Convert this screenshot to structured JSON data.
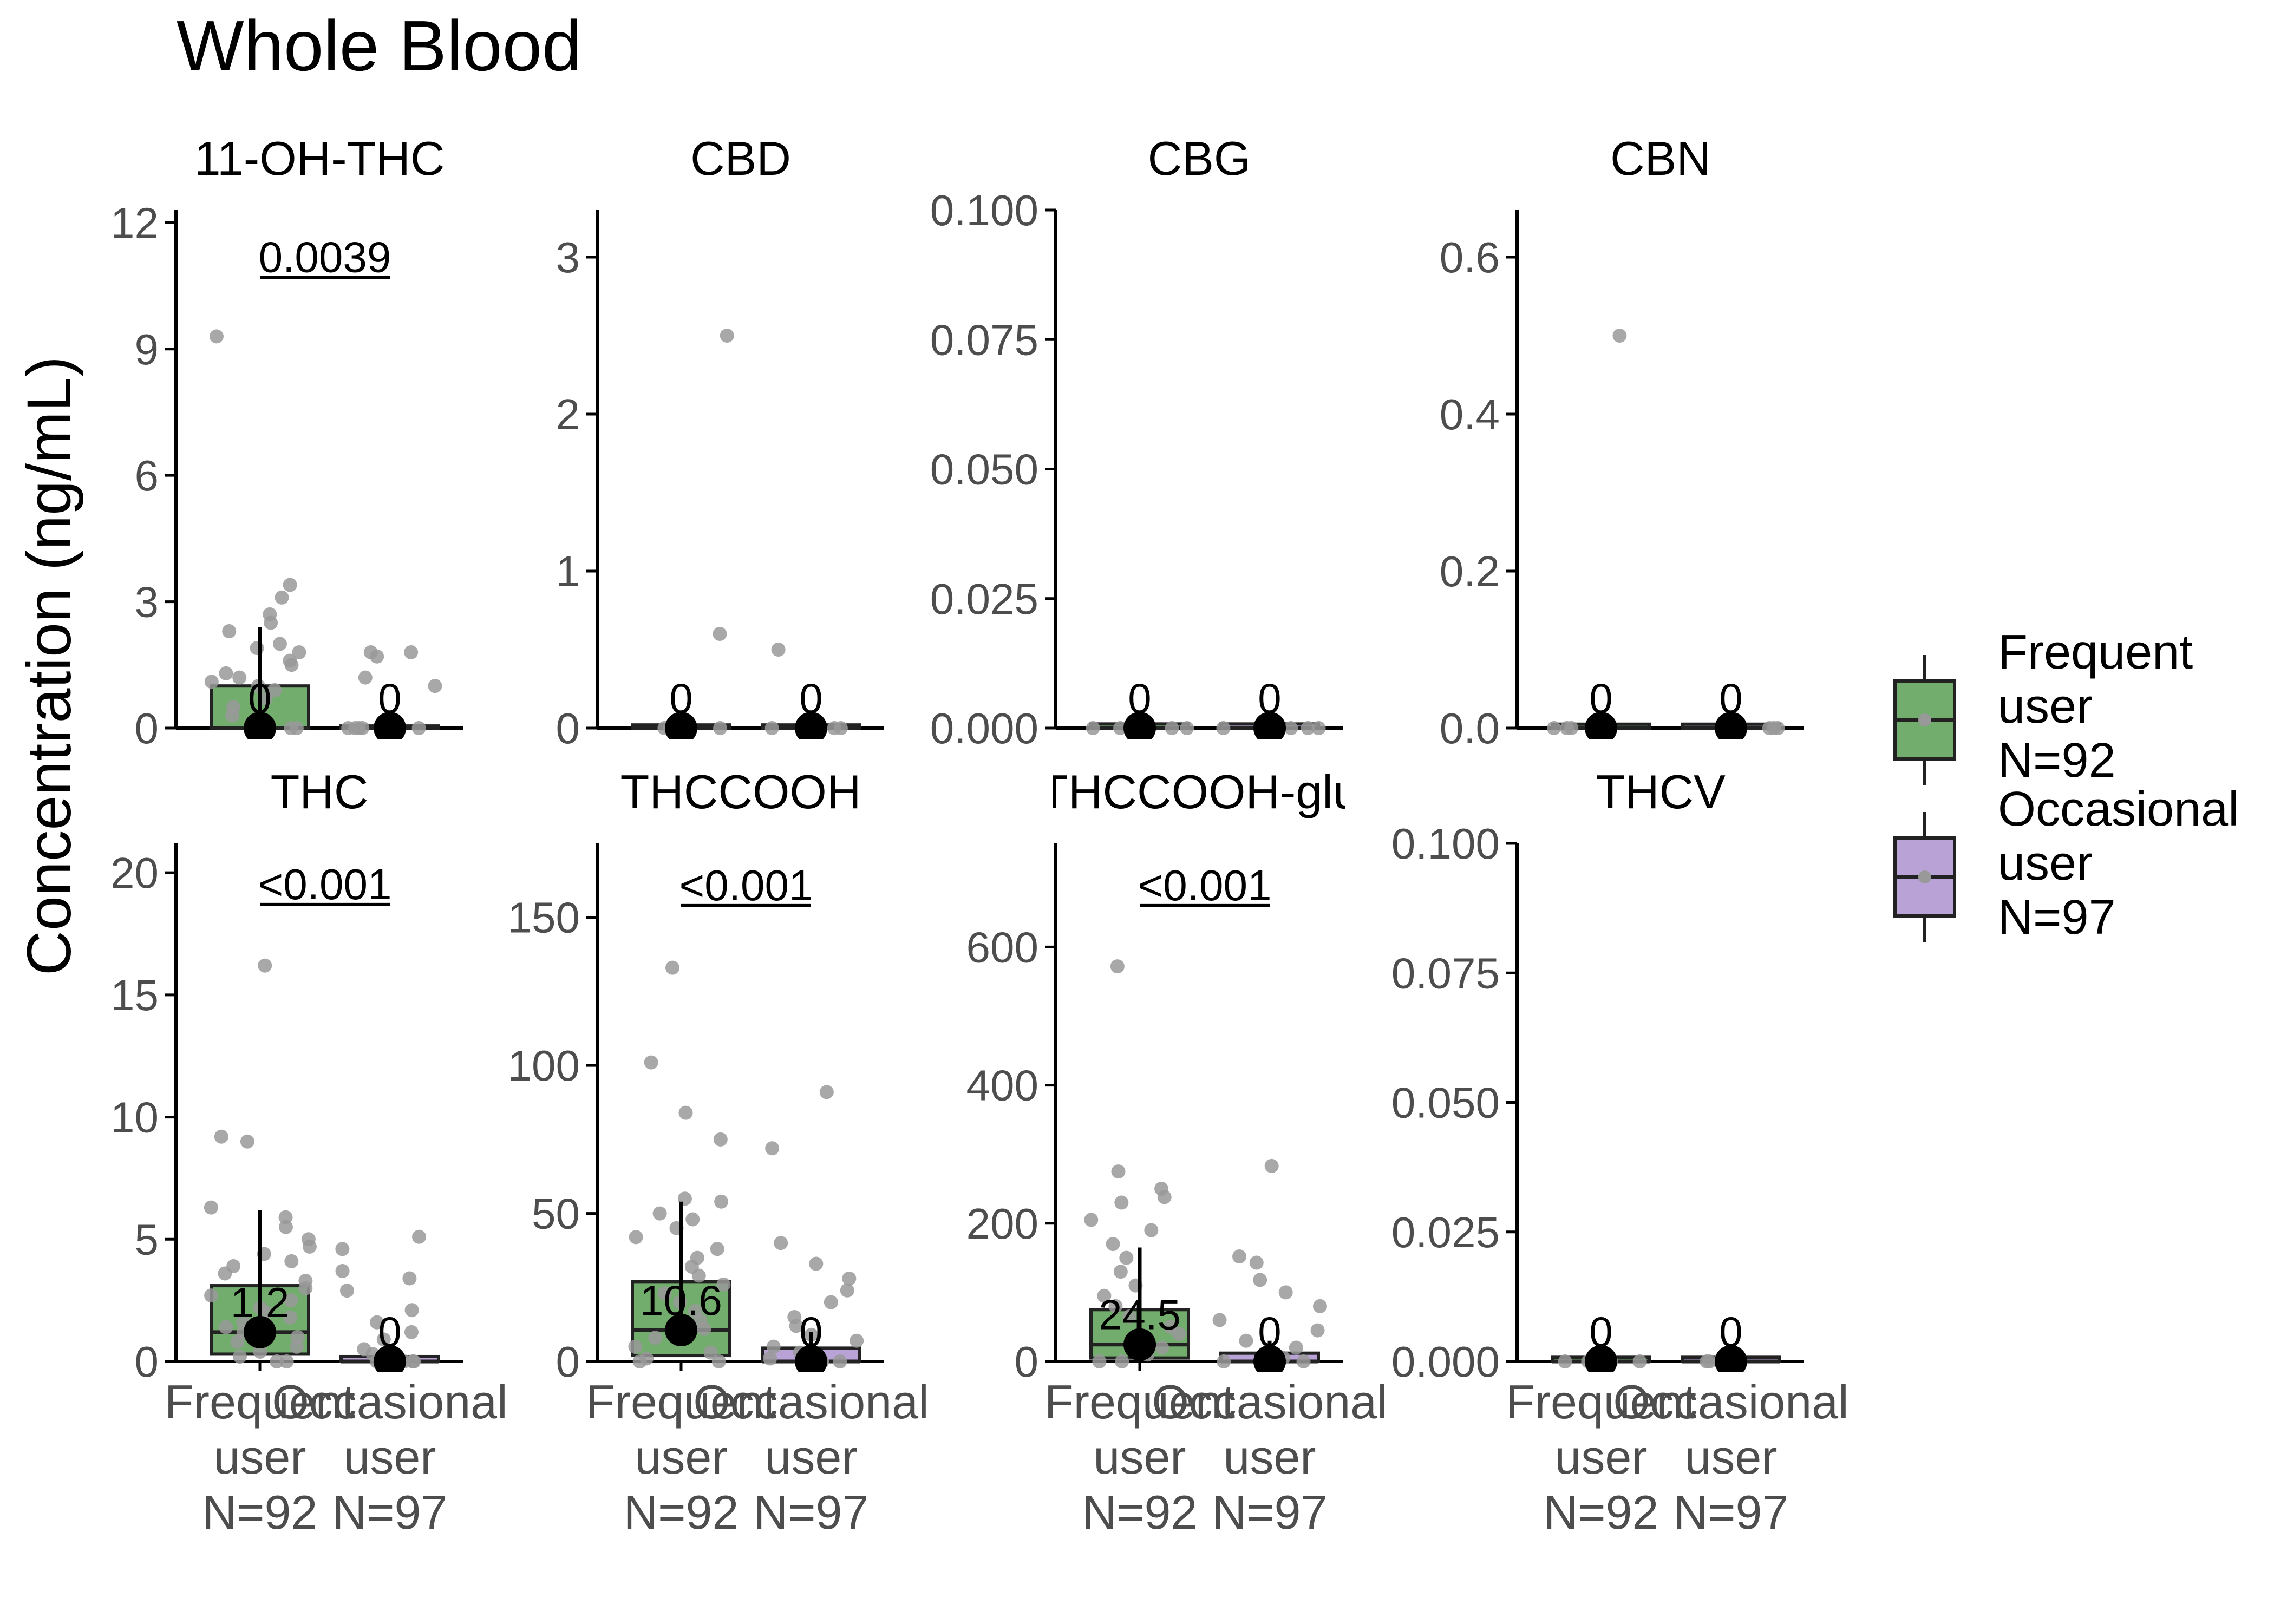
{
  "title": "Whole Blood",
  "ylabel": "Concentration (ng/mL)",
  "colors": {
    "frequent": "#72ad6e",
    "occasional": "#b9a3d6",
    "jitter": "#999999",
    "axis": "#000000",
    "tick_text": "#4d4d4d"
  },
  "legend": {
    "items": [
      {
        "key": "frequent",
        "lines": [
          "Frequent",
          "user",
          "N=92"
        ]
      },
      {
        "key": "occasional",
        "lines": [
          "Occasional",
          "user",
          "N=97"
        ]
      }
    ]
  },
  "x_labels": [
    {
      "key": "frequent",
      "lines": [
        "Frequent",
        "user",
        "N=92"
      ]
    },
    {
      "key": "occasional",
      "lines": [
        "Occasional",
        "user",
        "N=97"
      ]
    }
  ],
  "chart_data": [
    {
      "type": "box",
      "title": "11-OH-THC",
      "ylim": [
        0,
        12.3
      ],
      "yticks": [
        0,
        3,
        6,
        9,
        12
      ],
      "yticklabels": [
        "0",
        "3",
        "6",
        "9",
        "12"
      ],
      "show_x_labels": false,
      "pvalue": "0.0039",
      "pvalue_y": 10.7,
      "groups": [
        {
          "key": "frequent",
          "q1": 0,
          "median": 0,
          "q3": 1.0,
          "whisker_high": 2.4,
          "mean_point": 0,
          "label": "0",
          "points": [
            9.3,
            3.4,
            3.1,
            2.7,
            2.5,
            2.3,
            2.0,
            1.9,
            1.8,
            1.6,
            1.5,
            1.3,
            1.2,
            1.1,
            1.0,
            0.9,
            0.7,
            0.5,
            0.3,
            0,
            0,
            0
          ]
        },
        {
          "key": "occasional",
          "q1": 0,
          "median": 0,
          "q3": 0.05,
          "whisker_high": 0.1,
          "mean_point": 0,
          "label": "0",
          "points": [
            1.8,
            1.8,
            1.7,
            1.2,
            1.0,
            0,
            0,
            0,
            0,
            0
          ]
        }
      ]
    },
    {
      "type": "box",
      "title": "CBD",
      "ylim": [
        0,
        3.3
      ],
      "yticks": [
        0,
        1,
        2,
        3
      ],
      "yticklabels": [
        "0",
        "1",
        "2",
        "3"
      ],
      "show_x_labels": false,
      "groups": [
        {
          "key": "frequent",
          "q1": 0,
          "median": 0,
          "q3": 0.02,
          "whisker_high": 0.03,
          "mean_point": 0,
          "label": "0",
          "points": [
            2.5,
            0.6,
            0,
            0,
            0,
            0
          ]
        },
        {
          "key": "occasional",
          "q1": 0,
          "median": 0,
          "q3": 0.02,
          "whisker_high": 0.03,
          "mean_point": 0,
          "label": "0",
          "points": [
            0.5,
            0,
            0,
            0,
            0
          ]
        }
      ]
    },
    {
      "type": "box",
      "title": "CBG",
      "ylim": [
        0,
        0.1
      ],
      "yticks": [
        0,
        0.025,
        0.05,
        0.075,
        0.1
      ],
      "yticklabels": [
        "0.000",
        "0.025",
        "0.050",
        "0.075",
        "0.100"
      ],
      "show_x_labels": false,
      "groups": [
        {
          "key": "frequent",
          "q1": 0,
          "median": 0,
          "q3": 0.0008,
          "whisker_high": 0.0008,
          "mean_point": 0,
          "label": "0",
          "points": [
            0,
            0,
            0,
            0
          ]
        },
        {
          "key": "occasional",
          "q1": 0,
          "median": 0,
          "q3": 0.0008,
          "whisker_high": 0.0008,
          "mean_point": 0,
          "label": "0",
          "points": [
            0,
            0,
            0,
            0
          ]
        }
      ]
    },
    {
      "type": "box",
      "title": "CBN",
      "ylim": [
        0,
        0.66
      ],
      "yticks": [
        0,
        0.2,
        0.4,
        0.6
      ],
      "yticklabels": [
        "0.0",
        "0.2",
        "0.4",
        "0.6"
      ],
      "show_x_labels": false,
      "groups": [
        {
          "key": "frequent",
          "q1": 0,
          "median": 0,
          "q3": 0.005,
          "whisker_high": 0.005,
          "mean_point": 0,
          "label": "0",
          "points": [
            0.5,
            0,
            0,
            0
          ]
        },
        {
          "key": "occasional",
          "q1": 0,
          "median": 0,
          "q3": 0.005,
          "whisker_high": 0.005,
          "mean_point": 0,
          "label": "0",
          "points": [
            0,
            0,
            0
          ]
        }
      ]
    },
    {
      "type": "box",
      "title": "THC",
      "ylim": [
        0,
        21.2
      ],
      "yticks": [
        0,
        5,
        10,
        15,
        20
      ],
      "yticklabels": [
        "0",
        "5",
        "10",
        "15",
        "20"
      ],
      "show_x_labels": true,
      "pvalue": "<0.001",
      "pvalue_y": 18.7,
      "groups": [
        {
          "key": "frequent",
          "q1": 0.3,
          "median": 1.2,
          "q3": 3.1,
          "whisker_high": 6.2,
          "mean_point": 1.2,
          "label": "1.2",
          "points": [
            16.2,
            9.2,
            9.0,
            6.3,
            5.9,
            5.5,
            5.0,
            4.7,
            4.4,
            4.1,
            3.9,
            3.6,
            3.3,
            3.0,
            2.7,
            2.5,
            2.2,
            2.0,
            1.8,
            1.6,
            1.4,
            1.2,
            1.0,
            0.8,
            0.6,
            0.4,
            0.2,
            0,
            0
          ]
        },
        {
          "key": "occasional",
          "q1": 0,
          "median": 0,
          "q3": 0.2,
          "whisker_high": 0.5,
          "mean_point": 0,
          "label": "0",
          "points": [
            5.1,
            4.6,
            3.7,
            3.4,
            2.9,
            2.1,
            1.6,
            1.2,
            0.9,
            0.5,
            0.3,
            0,
            0,
            0,
            0
          ]
        }
      ]
    },
    {
      "type": "box",
      "title": "THCCOOH",
      "ylim": [
        0,
        175
      ],
      "yticks": [
        0,
        50,
        100,
        150
      ],
      "yticklabels": [
        "0",
        "50",
        "100",
        "150"
      ],
      "show_x_labels": true,
      "pvalue": "<0.001",
      "pvalue_y": 154,
      "groups": [
        {
          "key": "frequent",
          "q1": 2,
          "median": 10.6,
          "q3": 27,
          "whisker_high": 54,
          "mean_point": 10.6,
          "label": "10.6",
          "points": [
            133,
            101,
            84,
            75,
            55,
            54,
            50,
            48,
            45,
            42,
            38,
            35,
            32,
            29,
            26,
            23,
            20,
            17,
            14,
            11,
            8,
            5,
            3,
            1,
            0,
            0
          ]
        },
        {
          "key": "occasional",
          "q1": 0,
          "median": 0,
          "q3": 4.5,
          "whisker_high": 10,
          "mean_point": 0,
          "label": "0",
          "points": [
            91,
            72,
            40,
            33,
            28,
            24,
            20,
            15,
            12,
            9,
            7,
            5,
            3,
            1,
            0,
            0
          ]
        }
      ]
    },
    {
      "type": "box",
      "title": "THCCOOH-glu",
      "ylim": [
        0,
        750
      ],
      "yticks": [
        0,
        200,
        400,
        600
      ],
      "yticklabels": [
        "0",
        "200",
        "400",
        "600"
      ],
      "show_x_labels": true,
      "pvalue": "<0.001",
      "pvalue_y": 660,
      "groups": [
        {
          "key": "frequent",
          "q1": 5,
          "median": 24.5,
          "q3": 75,
          "whisker_high": 165,
          "mean_point": 24.5,
          "label": "24.5",
          "points": [
            572,
            275,
            250,
            238,
            230,
            205,
            190,
            170,
            150,
            130,
            110,
            95,
            80,
            65,
            50,
            40,
            30,
            20,
            10,
            0,
            0
          ]
        },
        {
          "key": "occasional",
          "q1": 0,
          "median": 0,
          "q3": 12,
          "whisker_high": 30,
          "mean_point": 0,
          "label": "0",
          "points": [
            283,
            152,
            143,
            118,
            100,
            80,
            60,
            45,
            30,
            20,
            10,
            5,
            0,
            0
          ]
        }
      ]
    },
    {
      "type": "box",
      "title": "THCV",
      "ylim": [
        0,
        0.1
      ],
      "yticks": [
        0,
        0.025,
        0.05,
        0.075,
        0.1
      ],
      "yticklabels": [
        "0.000",
        "0.025",
        "0.050",
        "0.075",
        "0.100"
      ],
      "show_x_labels": true,
      "groups": [
        {
          "key": "frequent",
          "q1": 0,
          "median": 0,
          "q3": 0.0008,
          "whisker_high": 0.0008,
          "mean_point": 0,
          "label": "0",
          "points": [
            0,
            0,
            0,
            0
          ]
        },
        {
          "key": "occasional",
          "q1": 0,
          "median": 0,
          "q3": 0.0008,
          "whisker_high": 0.0008,
          "mean_point": 0,
          "label": "0",
          "points": [
            0,
            0,
            0,
            0
          ]
        }
      ]
    }
  ]
}
